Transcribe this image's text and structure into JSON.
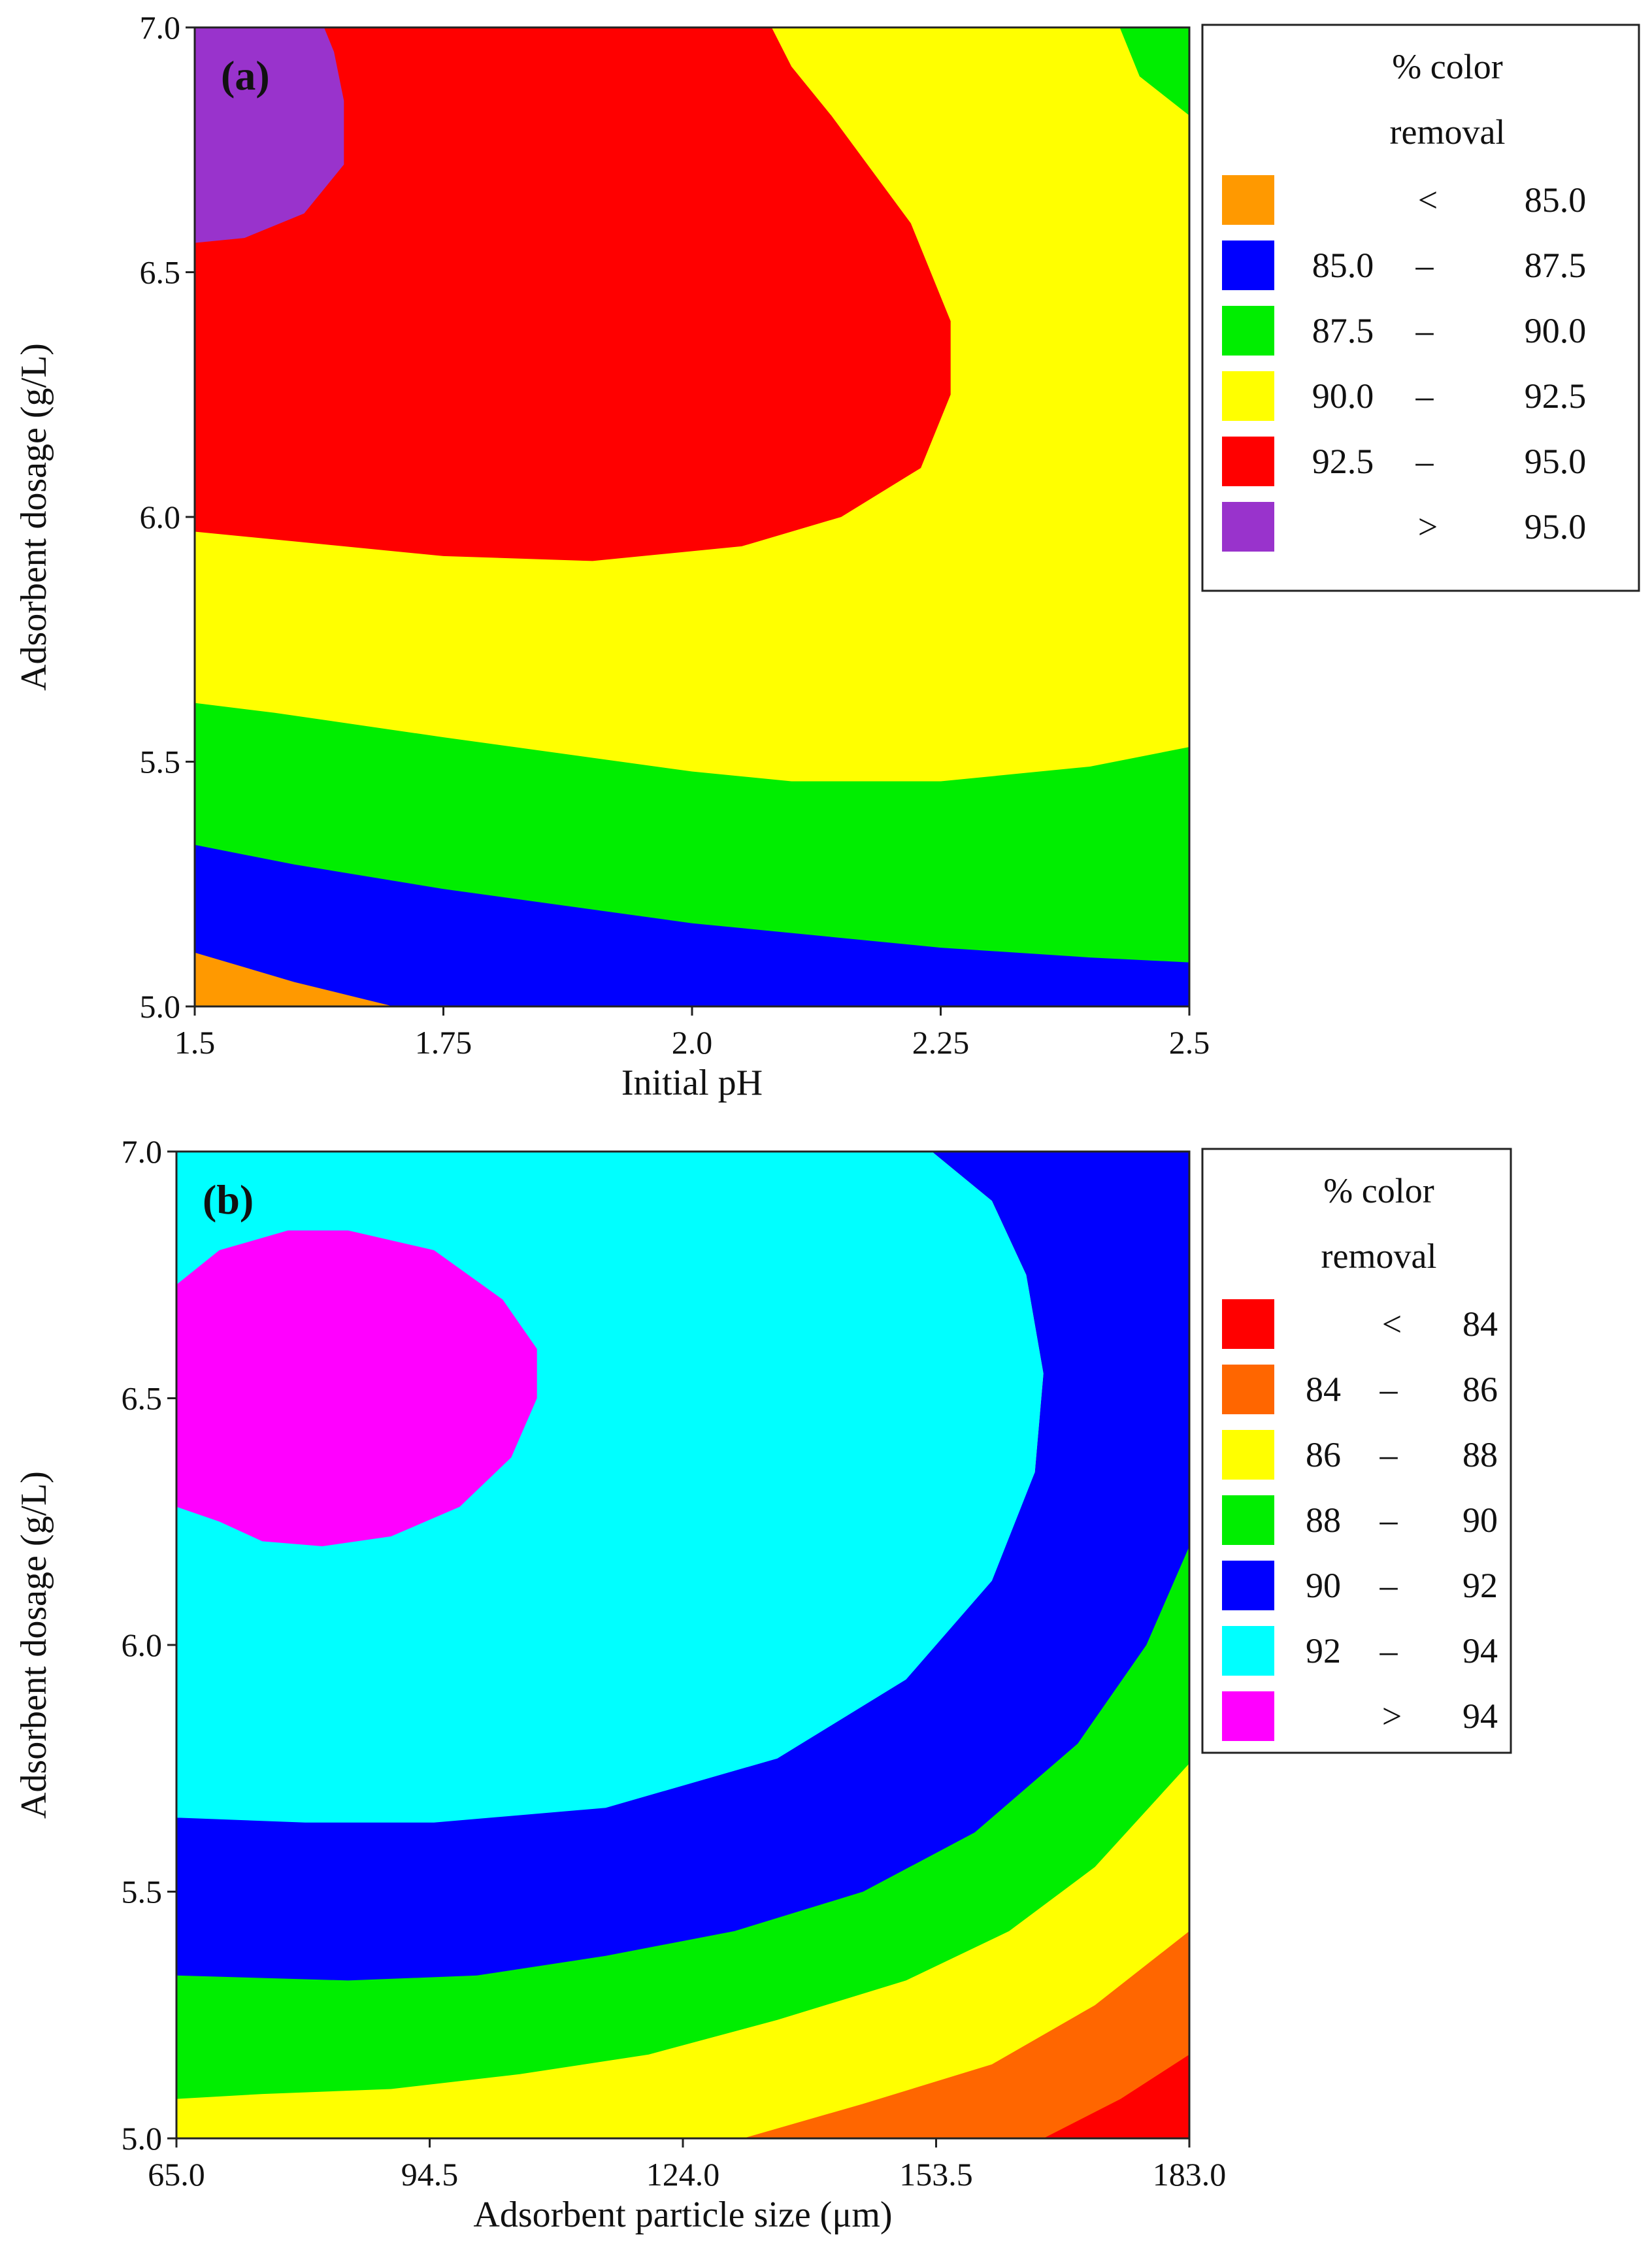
{
  "chart_data": [
    {
      "type": "contour",
      "panel_label": "(a)",
      "xlabel": "Initial pH",
      "ylabel": "Adsorbent dosage (g/L)",
      "xlim": [
        1.5,
        2.5
      ],
      "ylim": [
        5.0,
        7.0
      ],
      "x_ticks": [
        "1.5",
        "1.75",
        "2.0",
        "2.25",
        "2.5"
      ],
      "y_ticks": [
        "5.0",
        "5.5",
        "6.0",
        "6.5",
        "7.0"
      ],
      "legend": {
        "title_line1": "% color",
        "title_line2": "removal",
        "items": [
          {
            "op": "<",
            "low": "",
            "high": "85.0",
            "dash": "",
            "color": "#ff9900"
          },
          {
            "op": "",
            "low": "85.0",
            "high": "87.5",
            "dash": "–",
            "color": "#0000ff"
          },
          {
            "op": "",
            "low": "87.5",
            "high": "90.0",
            "dash": "–",
            "color": "#00ee00"
          },
          {
            "op": "",
            "low": "90.0",
            "high": "92.5",
            "dash": "–",
            "color": "#ffff00"
          },
          {
            "op": "",
            "low": "92.5",
            "high": "95.0",
            "dash": "–",
            "color": "#ff0000"
          },
          {
            "op": ">",
            "low": "",
            "high": "95.0",
            "dash": "",
            "color": "#9933cc"
          }
        ]
      },
      "base_color": "#ffff00",
      "regions": [
        {
          "level": "87.5 – 90.0",
          "color": "#00ee00",
          "points": [
            [
              1.5,
              5.0
            ],
            [
              1.5,
              5.62
            ],
            [
              1.58,
              5.6
            ],
            [
              1.75,
              5.55
            ],
            [
              2.0,
              5.48
            ],
            [
              2.1,
              5.46
            ],
            [
              2.25,
              5.46
            ],
            [
              2.4,
              5.49
            ],
            [
              2.5,
              5.53
            ],
            [
              2.5,
              5.0
            ]
          ]
        },
        {
          "level": "85.0 – 87.5",
          "color": "#0000ff",
          "points": [
            [
              1.5,
              5.0
            ],
            [
              1.5,
              5.33
            ],
            [
              1.6,
              5.29
            ],
            [
              1.75,
              5.24
            ],
            [
              2.0,
              5.17
            ],
            [
              2.25,
              5.12
            ],
            [
              2.4,
              5.1
            ],
            [
              2.5,
              5.09
            ],
            [
              2.5,
              5.0
            ]
          ]
        },
        {
          "level": "< 85.0",
          "color": "#ff9900",
          "points": [
            [
              1.5,
              5.0
            ],
            [
              1.5,
              5.11
            ],
            [
              1.6,
              5.05
            ],
            [
              1.7,
              5.0
            ]
          ]
        },
        {
          "level": "87.5 – 90.0",
          "color": "#00ee00",
          "points": [
            [
              2.5,
              7.0
            ],
            [
              2.5,
              6.82
            ],
            [
              2.45,
              6.9
            ],
            [
              2.43,
              7.0
            ]
          ]
        },
        {
          "level": "92.5 – 95.0",
          "color": "#ff0000",
          "points": [
            [
              1.5,
              5.97
            ],
            [
              1.6,
              5.95
            ],
            [
              1.75,
              5.92
            ],
            [
              1.9,
              5.91
            ],
            [
              2.05,
              5.94
            ],
            [
              2.15,
              6.0
            ],
            [
              2.23,
              6.1
            ],
            [
              2.26,
              6.25
            ],
            [
              2.26,
              6.4
            ],
            [
              2.22,
              6.6
            ],
            [
              2.14,
              6.82
            ],
            [
              2.1,
              6.92
            ],
            [
              2.08,
              7.0
            ],
            [
              1.5,
              7.0
            ]
          ]
        },
        {
          "level": "> 95.0",
          "color": "#9933cc",
          "points": [
            [
              1.5,
              6.56
            ],
            [
              1.55,
              6.57
            ],
            [
              1.61,
              6.62
            ],
            [
              1.65,
              6.72
            ],
            [
              1.65,
              6.85
            ],
            [
              1.64,
              6.95
            ],
            [
              1.63,
              7.0
            ],
            [
              1.5,
              7.0
            ]
          ]
        }
      ]
    },
    {
      "type": "contour",
      "panel_label": "(b)",
      "xlabel": "Adsorbent particle size (μm)",
      "ylabel": "Adsorbent dosage (g/L)",
      "xlim": [
        65.0,
        183.0
      ],
      "ylim": [
        5.0,
        7.0
      ],
      "x_ticks": [
        "65.0",
        "94.5",
        "124.0",
        "153.5",
        "183.0"
      ],
      "y_ticks": [
        "5.0",
        "5.5",
        "6.0",
        "6.5",
        "7.0"
      ],
      "legend": {
        "title_line1": "% color",
        "title_line2": "removal",
        "items": [
          {
            "op": "<",
            "low": "",
            "high": "84",
            "dash": "",
            "color": "#ff0000"
          },
          {
            "op": "",
            "low": "84",
            "high": "86",
            "dash": "–",
            "color": "#ff6600"
          },
          {
            "op": "",
            "low": "86",
            "high": "88",
            "dash": "–",
            "color": "#ffff00"
          },
          {
            "op": "",
            "low": "88",
            "high": "90",
            "dash": "–",
            "color": "#00ee00"
          },
          {
            "op": "",
            "low": "90",
            "high": "92",
            "dash": "–",
            "color": "#0000ff"
          },
          {
            "op": "",
            "low": "92",
            "high": "94",
            "dash": "–",
            "color": "#00ffff"
          },
          {
            "op": ">",
            "low": "",
            "high": "94",
            "dash": "",
            "color": "#ff00ff"
          }
        ]
      },
      "base_color": "#ffff00",
      "regions": [
        {
          "level": "84 – 86",
          "color": "#ff6600",
          "points": [
            [
              131,
              5.0
            ],
            [
              145,
              5.07
            ],
            [
              160,
              5.15
            ],
            [
              172,
              5.27
            ],
            [
              183,
              5.42
            ],
            [
              183,
              5.0
            ]
          ]
        },
        {
          "level": "< 84",
          "color": "#ff0000",
          "points": [
            [
              166,
              5.0
            ],
            [
              175,
              5.08
            ],
            [
              183,
              5.17
            ],
            [
              183,
              5.0
            ]
          ]
        },
        {
          "level": "88 – 90",
          "color": "#00ee00",
          "points": [
            [
              65,
              5.08
            ],
            [
              75,
              5.09
            ],
            [
              90,
              5.1
            ],
            [
              105,
              5.13
            ],
            [
              120,
              5.17
            ],
            [
              135,
              5.24
            ],
            [
              150,
              5.32
            ],
            [
              162,
              5.42
            ],
            [
              172,
              5.55
            ],
            [
              183,
              5.76
            ],
            [
              183,
              6.2
            ],
            [
              174,
              6.02
            ],
            [
              160,
              5.86
            ],
            [
              145,
              5.73
            ],
            [
              130,
              5.63
            ],
            [
              115,
              5.54
            ],
            [
              100,
              5.47
            ],
            [
              85,
              5.43
            ],
            [
              65,
              5.4
            ]
          ]
        },
        {
          "level": "90 – 92",
          "color": "#0000ff",
          "points": [
            [
              65,
              5.33
            ],
            [
              85,
              5.32
            ],
            [
              100,
              5.33
            ],
            [
              115,
              5.37
            ],
            [
              130,
              5.42
            ],
            [
              145,
              5.5
            ],
            [
              158,
              5.62
            ],
            [
              170,
              5.8
            ],
            [
              178,
              6.0
            ],
            [
              183,
              6.2
            ],
            [
              183,
              7.0
            ],
            [
              153,
              7.0
            ],
            [
              160,
              6.9
            ],
            [
              164,
              6.75
            ],
            [
              166,
              6.55
            ],
            [
              165,
              6.35
            ],
            [
              160,
              6.15
            ],
            [
              150,
              5.95
            ],
            [
              135,
              5.8
            ],
            [
              115,
              5.7
            ],
            [
              95,
              5.66
            ],
            [
              65,
              5.65
            ]
          ]
        },
        {
          "level": "92 – 94",
          "color": "#00ffff",
          "points": [
            [
              65,
              5.65
            ],
            [
              80,
              5.64
            ],
            [
              95,
              5.64
            ],
            [
              115,
              5.67
            ],
            [
              135,
              5.77
            ],
            [
              150,
              5.93
            ],
            [
              160,
              6.13
            ],
            [
              165,
              6.35
            ],
            [
              166,
              6.55
            ],
            [
              164,
              6.75
            ],
            [
              160,
              6.9
            ],
            [
              153,
              7.0
            ],
            [
              65,
              7.0
            ]
          ]
        },
        {
          "level": "> 94",
          "color": "#ff00ff",
          "points": [
            [
              65,
              6.28
            ],
            [
              70,
              6.25
            ],
            [
              75,
              6.21
            ],
            [
              82,
              6.2
            ],
            [
              90,
              6.22
            ],
            [
              98,
              6.28
            ],
            [
              104,
              6.38
            ],
            [
              107,
              6.5
            ],
            [
              107,
              6.6
            ],
            [
              103,
              6.7
            ],
            [
              95,
              6.8
            ],
            [
              85,
              6.84
            ],
            [
              78,
              6.84
            ],
            [
              70,
              6.8
            ],
            [
              65,
              6.73
            ]
          ]
        }
      ]
    }
  ]
}
